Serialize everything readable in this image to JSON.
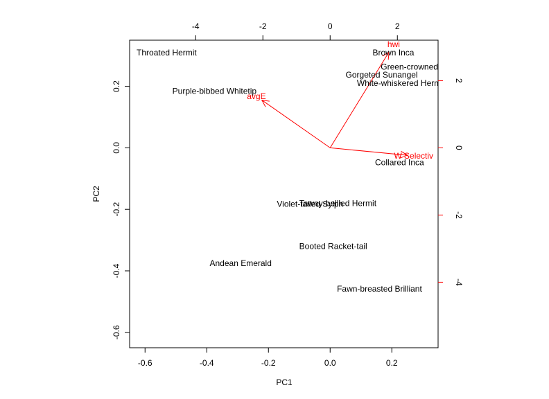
{
  "chart_data": {
    "type": "scatter",
    "title": "",
    "xlabel": "PC1",
    "ylabel": "PC2",
    "xlim": [
      -0.65,
      0.35
    ],
    "ylim": [
      -0.65,
      0.35
    ],
    "x_ticks": [
      -0.6,
      -0.4,
      -0.2,
      0.0,
      0.2
    ],
    "y_ticks": [
      -0.6,
      -0.4,
      -0.2,
      0.0,
      0.2
    ],
    "top_ticks": [
      -4,
      -2,
      0,
      2
    ],
    "right_ticks": [
      -4,
      -2,
      0,
      2
    ],
    "grid": false,
    "legend": "none",
    "colors": {
      "points": "#000000",
      "arrows": "#ff0000",
      "axes": "#000000"
    },
    "points": [
      {
        "label": "Throated Hermit",
        "x": -0.53,
        "y": 0.31
      },
      {
        "label": "Purple-bibbed Whitetip",
        "x": -0.375,
        "y": 0.185
      },
      {
        "label": "Brown Inca",
        "x": 0.205,
        "y": 0.31
      },
      {
        "label": "Green-crowned",
        "x": 0.257,
        "y": 0.263
      },
      {
        "label": "Gorgeted Sunangel",
        "x": 0.167,
        "y": 0.237
      },
      {
        "label": "White-whiskered Hermit",
        "x": 0.23,
        "y": 0.21
      },
      {
        "label": "Collared Inca",
        "x": 0.225,
        "y": -0.047
      },
      {
        "label": "Violet-tailed Sylph",
        "x": -0.065,
        "y": -0.183
      },
      {
        "label": "Tawny-bellied Hermit",
        "x": 0.025,
        "y": -0.18
      },
      {
        "label": "Booted Racket-tail",
        "x": 0.01,
        "y": -0.32
      },
      {
        "label": "Andean Emerald",
        "x": -0.29,
        "y": -0.375
      },
      {
        "label": "Fawn-breasted Brilliant",
        "x": 0.16,
        "y": -0.458
      }
    ],
    "arrows": [
      {
        "label": "avgE",
        "x": -2.03,
        "y": 1.42
      },
      {
        "label": "hwi",
        "x": 1.75,
        "y": 2.85
      },
      {
        "label": "W Selectiv",
        "x": 2.3,
        "y": -0.22
      }
    ]
  }
}
